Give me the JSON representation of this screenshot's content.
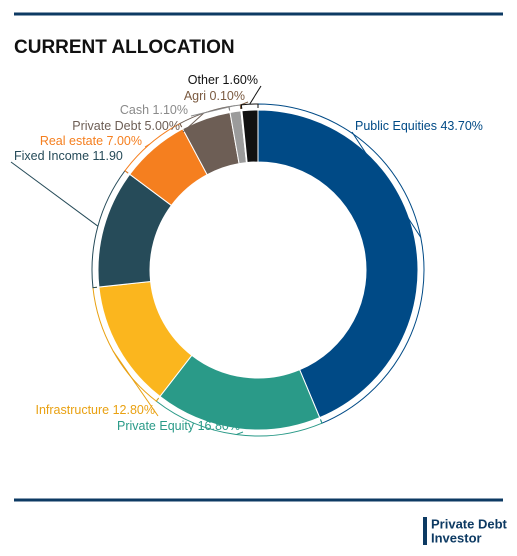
{
  "chart_data": {
    "type": "donut",
    "title": "CURRENT ALLOCATION",
    "categories": [
      "Public Equities",
      "Private Equity",
      "Infrastructure",
      "Fixed Income",
      "Real estate",
      "Private Debt",
      "Cash",
      "Agri",
      "Other"
    ],
    "values": [
      43.7,
      16.8,
      12.8,
      11.9,
      7.0,
      5.0,
      1.1,
      0.1,
      1.6
    ],
    "value_labels": [
      "43.70%",
      "16.80%",
      "12.80%",
      "11.90",
      "7.00%",
      "5.00%",
      "1.10%",
      "0.10%",
      "1.60%"
    ],
    "colors": [
      "#004a86",
      "#2a9a88",
      "#fbb61e",
      "#264b59",
      "#f57f1f",
      "#6d5e55",
      "#9b9b9b",
      "#d9d9d9",
      "#111111"
    ],
    "label_colors": [
      "#004a86",
      "#2a9a88",
      "#e9a112",
      "#264b59",
      "#f57f1f",
      "#6d5e55",
      "#8a8a8a",
      "#7a5a40",
      "#111111"
    ]
  },
  "logo": {
    "line1": "Private Debt",
    "line2": "Investor"
  }
}
